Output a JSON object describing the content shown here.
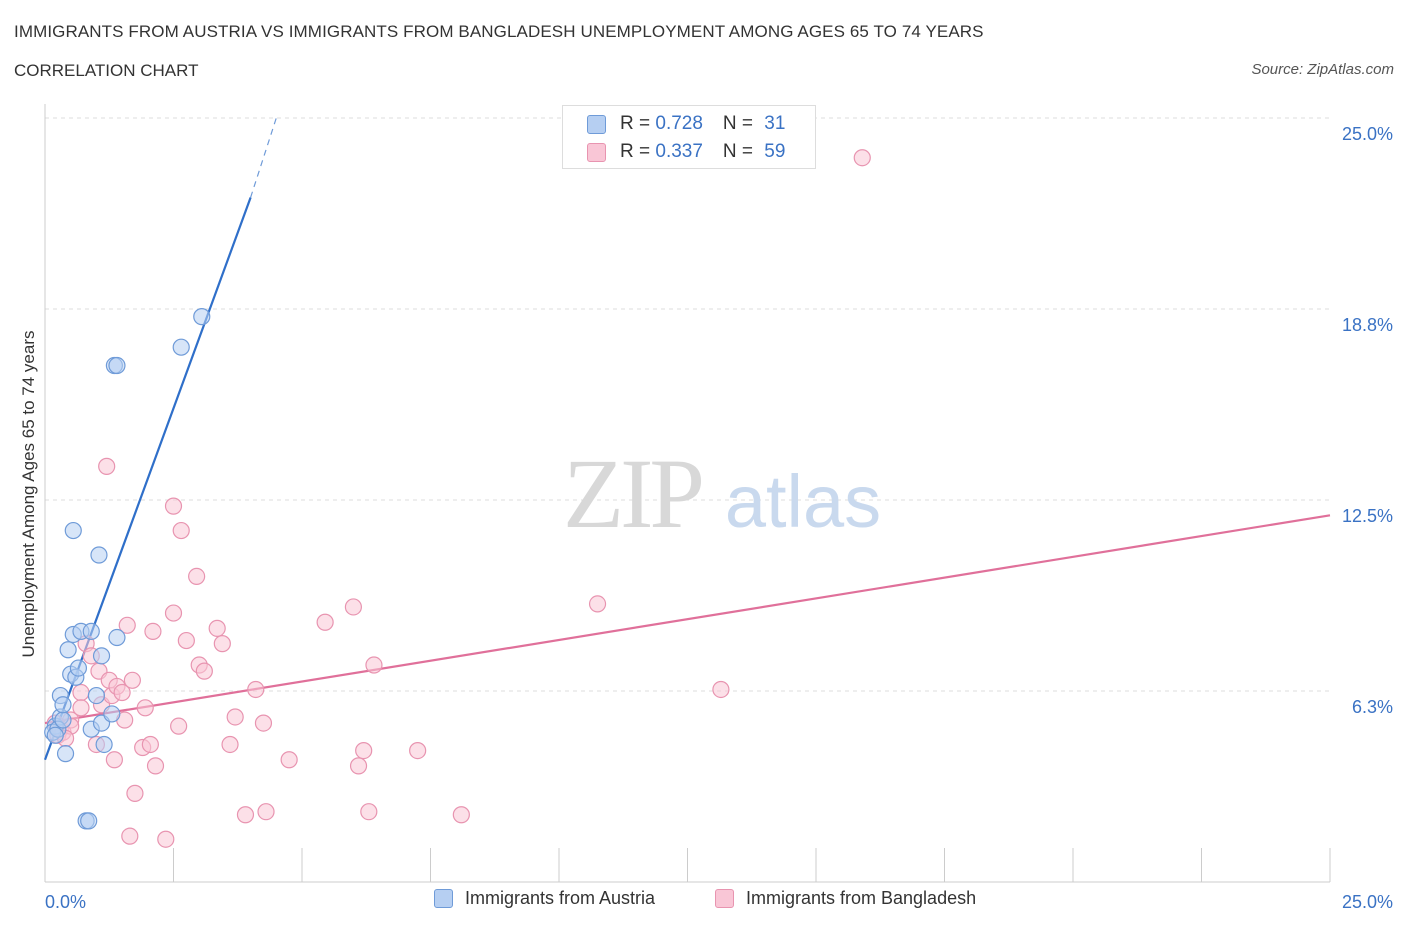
{
  "header": {
    "title": "IMMIGRANTS FROM AUSTRIA VS IMMIGRANTS FROM BANGLADESH UNEMPLOYMENT AMONG AGES 65 TO 74 YEARS",
    "subtitle": "CORRELATION CHART",
    "source": "Source: ZipAtlas.com"
  },
  "watermark": {
    "zip": "ZIP",
    "atlas": "atlas"
  },
  "stats": {
    "austria": {
      "r_label": "R = ",
      "r": "0.728",
      "n_label": "N = ",
      "n": "31"
    },
    "bangladesh": {
      "r_label": "R = ",
      "r": "0.337",
      "n_label": "N = ",
      "n": "59"
    }
  },
  "colors": {
    "austria_fill": "#b6cff2",
    "austria_stroke": "#6f9bd8",
    "austria_line": "#2f6fc9",
    "bangladesh_fill": "#f9c6d6",
    "bangladesh_stroke": "#e894b0",
    "bangladesh_line": "#e0709a",
    "axis_label": "#3a72c4",
    "grid": "#dddddd"
  },
  "chart_data": {
    "type": "scatter",
    "title": "IMMIGRANTS FROM AUSTRIA VS IMMIGRANTS FROM BANGLADESH UNEMPLOYMENT AMONG AGES 65 TO 74 YEARS",
    "xlabel": "",
    "ylabel": "Unemployment Among Ages 65 to 74 years",
    "xlim": [
      0,
      25
    ],
    "ylim": [
      0,
      25
    ],
    "x_tick_labels": [
      "0.0%",
      "25.0%"
    ],
    "y_ticks": [
      6.25,
      12.5,
      18.75,
      25
    ],
    "y_tick_labels": [
      "6.3%",
      "12.5%",
      "18.8%",
      "25.0%"
    ],
    "legend": [
      "Immigrants from Austria",
      "Immigrants from Bangladesh"
    ],
    "series": [
      {
        "name": "Immigrants from Austria",
        "points": [
          [
            0.2,
            5.1
          ],
          [
            0.3,
            5.4
          ],
          [
            0.15,
            4.9
          ],
          [
            0.25,
            5.0
          ],
          [
            0.35,
            5.3
          ],
          [
            0.4,
            4.2
          ],
          [
            0.3,
            6.1
          ],
          [
            0.35,
            5.8
          ],
          [
            0.5,
            6.8
          ],
          [
            0.45,
            7.6
          ],
          [
            0.6,
            6.7
          ],
          [
            0.55,
            8.1
          ],
          [
            0.65,
            7.0
          ],
          [
            0.7,
            8.2
          ],
          [
            0.8,
            2.0
          ],
          [
            0.85,
            2.0
          ],
          [
            0.9,
            5.0
          ],
          [
            0.9,
            8.2
          ],
          [
            1.0,
            6.1
          ],
          [
            1.05,
            10.7
          ],
          [
            0.55,
            11.5
          ],
          [
            1.1,
            7.4
          ],
          [
            1.1,
            5.2
          ],
          [
            1.15,
            4.5
          ],
          [
            1.3,
            5.5
          ],
          [
            1.4,
            8.0
          ],
          [
            1.35,
            16.9
          ],
          [
            1.4,
            16.9
          ],
          [
            2.65,
            17.5
          ],
          [
            3.05,
            18.5
          ],
          [
            0.2,
            4.8
          ]
        ],
        "trend": {
          "x0": 0.0,
          "y0": 4.0,
          "x1": 4.0,
          "y1": 22.4,
          "dash_x1": 4.5,
          "dash_y1": 25.0
        }
      },
      {
        "name": "Immigrants from Bangladesh",
        "points": [
          [
            0.2,
            5.2
          ],
          [
            0.25,
            4.8
          ],
          [
            0.3,
            5.0
          ],
          [
            0.35,
            4.9
          ],
          [
            0.5,
            5.3
          ],
          [
            0.5,
            5.1
          ],
          [
            0.7,
            6.2
          ],
          [
            0.7,
            5.7
          ],
          [
            0.8,
            7.8
          ],
          [
            0.9,
            7.4
          ],
          [
            1.0,
            4.5
          ],
          [
            1.05,
            6.9
          ],
          [
            1.1,
            5.8
          ],
          [
            1.2,
            13.6
          ],
          [
            1.25,
            6.6
          ],
          [
            1.3,
            6.1
          ],
          [
            1.35,
            4.0
          ],
          [
            1.4,
            6.4
          ],
          [
            1.5,
            6.2
          ],
          [
            1.55,
            5.3
          ],
          [
            1.6,
            8.4
          ],
          [
            1.65,
            1.5
          ],
          [
            1.7,
            6.6
          ],
          [
            1.75,
            2.9
          ],
          [
            1.9,
            4.4
          ],
          [
            1.95,
            5.7
          ],
          [
            2.05,
            4.5
          ],
          [
            2.1,
            8.2
          ],
          [
            2.15,
            3.8
          ],
          [
            2.35,
            1.4
          ],
          [
            2.5,
            12.3
          ],
          [
            2.5,
            8.8
          ],
          [
            2.6,
            5.1
          ],
          [
            2.65,
            11.5
          ],
          [
            2.75,
            7.9
          ],
          [
            2.95,
            10.0
          ],
          [
            3.0,
            7.1
          ],
          [
            3.1,
            6.9
          ],
          [
            3.35,
            8.3
          ],
          [
            3.45,
            7.8
          ],
          [
            3.6,
            4.5
          ],
          [
            3.7,
            5.4
          ],
          [
            3.9,
            2.2
          ],
          [
            4.1,
            6.3
          ],
          [
            4.25,
            5.2
          ],
          [
            4.3,
            2.3
          ],
          [
            4.75,
            4.0
          ],
          [
            5.45,
            8.5
          ],
          [
            6.0,
            9.0
          ],
          [
            6.1,
            3.8
          ],
          [
            6.2,
            4.3
          ],
          [
            6.3,
            2.3
          ],
          [
            6.4,
            7.1
          ],
          [
            7.25,
            4.3
          ],
          [
            8.1,
            2.2
          ],
          [
            10.75,
            9.1
          ],
          [
            13.15,
            6.3
          ],
          [
            15.9,
            23.7
          ],
          [
            0.4,
            4.7
          ]
        ],
        "trend": {
          "x0": 0.0,
          "y0": 5.2,
          "x1": 25.0,
          "y1": 12.0
        }
      }
    ]
  }
}
